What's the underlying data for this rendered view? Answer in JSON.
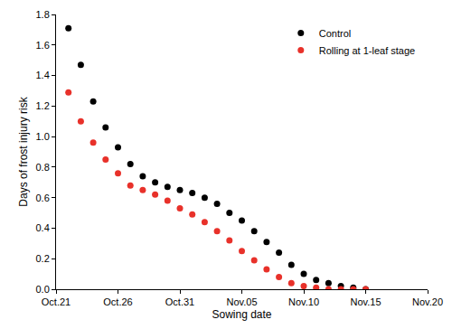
{
  "chart_data": {
    "type": "scatter",
    "x_label": "Sowing date",
    "y_label": "Days of frost injury risk",
    "categories": [
      "Oct.21",
      null,
      null,
      null,
      null,
      "Oct.26",
      null,
      null,
      null,
      null,
      "Oct.31",
      null,
      null,
      null,
      null,
      "Nov.05",
      null,
      null,
      null,
      null,
      "Nov.10",
      null,
      null,
      null,
      null,
      "Nov.15",
      null,
      null,
      null,
      null,
      "Nov.20"
    ],
    "series": [
      {
        "name": "Control",
        "color": "#000000",
        "marker": "circle",
        "values": [
          null,
          1.71,
          1.47,
          1.23,
          1.06,
          0.93,
          0.82,
          0.74,
          0.7,
          0.67,
          0.65,
          0.63,
          0.6,
          0.56,
          0.5,
          0.45,
          0.38,
          0.31,
          0.24,
          0.16,
          0.1,
          0.06,
          0.04,
          0.02,
          0.01,
          0.0,
          null,
          null,
          null,
          null,
          null
        ]
      },
      {
        "name": "Rolling at 1-leaf stage",
        "color": "#e8312a",
        "marker": "circle",
        "values": [
          null,
          1.29,
          1.1,
          0.96,
          0.85,
          0.76,
          0.68,
          0.65,
          0.62,
          0.58,
          0.53,
          0.49,
          0.44,
          0.38,
          0.32,
          0.25,
          0.19,
          0.13,
          0.08,
          0.04,
          0.02,
          0.01,
          0.0,
          0.0,
          0.0,
          0.0,
          null,
          null,
          null,
          null,
          null
        ]
      }
    ],
    "ylim": [
      0,
      1.8
    ],
    "yticks": [
      {
        "value": 0,
        "label": "0.0"
      },
      {
        "value": 0.2,
        "label": "0.2"
      },
      {
        "value": 0.4,
        "label": "0.4"
      },
      {
        "value": 0.6,
        "label": "0.6"
      },
      {
        "value": 0.8,
        "label": "0.8"
      },
      {
        "value": 1,
        "label": "1.0"
      },
      {
        "value": 1.2,
        "label": "1.2"
      },
      {
        "value": 1.4,
        "label": "1.4"
      },
      {
        "value": 1.6,
        "label": "1.6"
      },
      {
        "value": 1.8,
        "label": "1.8"
      }
    ],
    "grid": false,
    "legend": "upper right"
  }
}
